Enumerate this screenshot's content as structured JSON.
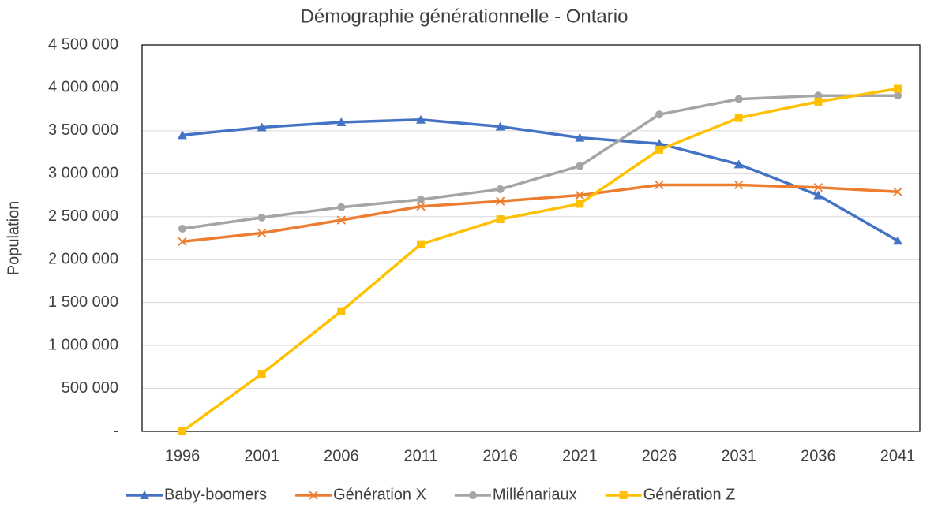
{
  "chart_data": {
    "type": "line",
    "title": "Démographie générationnelle - Ontario",
    "y_label": "Population",
    "categories": [
      "1996",
      "2001",
      "2006",
      "2011",
      "2016",
      "2021",
      "2026",
      "2031",
      "2036",
      "2041"
    ],
    "series": [
      {
        "name": "Baby-boomers",
        "color": "#4472c4",
        "marker": "triangle",
        "values": [
          3450000,
          3540000,
          3600000,
          3630000,
          3550000,
          3420000,
          3350000,
          3110000,
          2750000,
          2220000
        ]
      },
      {
        "name": "Génération X",
        "color": "#ed7d31",
        "marker": "x",
        "values": [
          2210000,
          2310000,
          2460000,
          2620000,
          2680000,
          2750000,
          2870000,
          2870000,
          2840000,
          2790000
        ]
      },
      {
        "name": "Millénariaux",
        "color": "#a5a5a5",
        "marker": "circle",
        "values": [
          2360000,
          2490000,
          2610000,
          2700000,
          2820000,
          3090000,
          3690000,
          3870000,
          3910000,
          3910000
        ]
      },
      {
        "name": "Génération Z",
        "color": "#ffc000",
        "marker": "square",
        "values": [
          0,
          670000,
          1400000,
          2180000,
          2470000,
          2650000,
          3280000,
          3650000,
          3840000,
          3990000
        ]
      }
    ],
    "ylim": [
      0,
      4500000
    ],
    "yticks": [
      {
        "value": 0,
        "label": "-"
      },
      {
        "value": 500000,
        "label": "500 000"
      },
      {
        "value": 1000000,
        "label": "1 000 000"
      },
      {
        "value": 1500000,
        "label": "1 500 000"
      },
      {
        "value": 2000000,
        "label": "2 000 000"
      },
      {
        "value": 2500000,
        "label": "2 500 000"
      },
      {
        "value": 3000000,
        "label": "3 000 000"
      },
      {
        "value": 3500000,
        "label": "3 500 000"
      },
      {
        "value": 4000000,
        "label": "4 000 000"
      },
      {
        "value": 4500000,
        "label": "4 500 000"
      }
    ],
    "grid": true,
    "legend": "bottom"
  }
}
